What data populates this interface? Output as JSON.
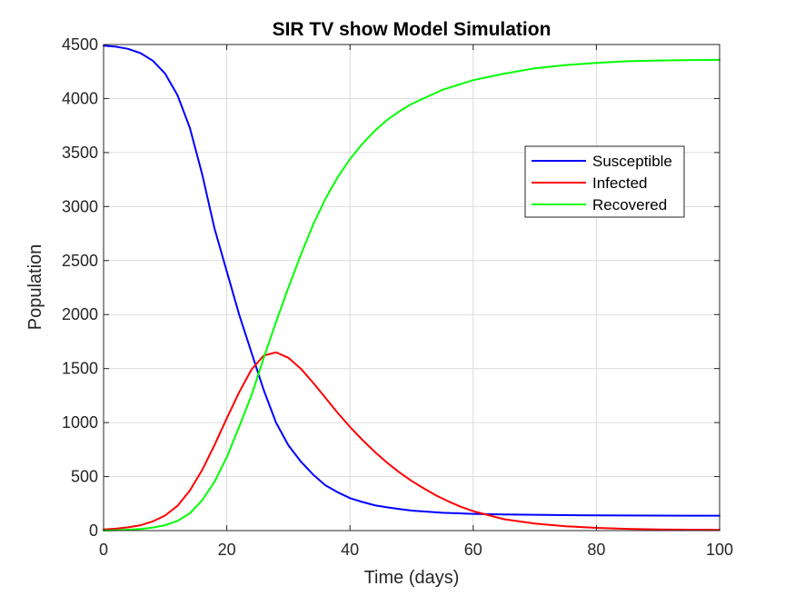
{
  "chart_data": {
    "type": "line",
    "title": "SIR TV show Model Simulation",
    "xlabel": "Time (days)",
    "ylabel": "Population",
    "xlim": [
      0,
      100
    ],
    "ylim": [
      0,
      4500
    ],
    "xticks": [
      0,
      20,
      40,
      60,
      80,
      100
    ],
    "yticks": [
      0,
      500,
      1000,
      1500,
      2000,
      2500,
      3000,
      3500,
      4000,
      4500
    ],
    "grid": true,
    "legend_position": "top-right",
    "series": [
      {
        "name": "Susceptible",
        "color": "#0000ff",
        "x": [
          0,
          2,
          4,
          6,
          8,
          10,
          12,
          14,
          16,
          18,
          20,
          22,
          24,
          26,
          28,
          30,
          32,
          34,
          36,
          38,
          40,
          42,
          44,
          46,
          48,
          50,
          55,
          60,
          65,
          70,
          75,
          80,
          85,
          90,
          95,
          100
        ],
        "y": [
          4490,
          4480,
          4460,
          4420,
          4350,
          4230,
          4030,
          3730,
          3300,
          2800,
          2400,
          2000,
          1650,
          1300,
          1000,
          790,
          640,
          520,
          420,
          355,
          300,
          265,
          235,
          215,
          200,
          185,
          165,
          155,
          150,
          146,
          143,
          141,
          140,
          139,
          138,
          138
        ]
      },
      {
        "name": "Infected",
        "color": "#ff0000",
        "x": [
          0,
          2,
          4,
          6,
          8,
          10,
          12,
          14,
          16,
          18,
          20,
          22,
          24,
          26,
          28,
          30,
          32,
          34,
          36,
          38,
          40,
          42,
          44,
          46,
          48,
          50,
          52,
          54,
          56,
          58,
          60,
          65,
          70,
          75,
          80,
          85,
          90,
          95,
          100
        ],
        "y": [
          10,
          18,
          30,
          50,
          85,
          140,
          230,
          370,
          560,
          790,
          1040,
          1280,
          1490,
          1620,
          1650,
          1600,
          1500,
          1370,
          1230,
          1090,
          960,
          840,
          730,
          630,
          540,
          460,
          390,
          325,
          270,
          220,
          180,
          105,
          65,
          40,
          25,
          16,
          11,
          8,
          6
        ]
      },
      {
        "name": "Recovered",
        "color": "#00ff00",
        "x": [
          0,
          2,
          4,
          6,
          8,
          10,
          12,
          14,
          16,
          18,
          20,
          22,
          24,
          26,
          28,
          30,
          32,
          34,
          36,
          38,
          40,
          42,
          44,
          46,
          48,
          50,
          55,
          60,
          65,
          70,
          75,
          80,
          85,
          90,
          95,
          100
        ],
        "y": [
          0,
          3,
          8,
          15,
          28,
          50,
          90,
          160,
          280,
          450,
          680,
          960,
          1250,
          1600,
          1930,
          2250,
          2550,
          2830,
          3070,
          3270,
          3440,
          3580,
          3700,
          3800,
          3880,
          3950,
          4080,
          4170,
          4230,
          4280,
          4310,
          4330,
          4345,
          4352,
          4356,
          4358
        ]
      }
    ]
  }
}
